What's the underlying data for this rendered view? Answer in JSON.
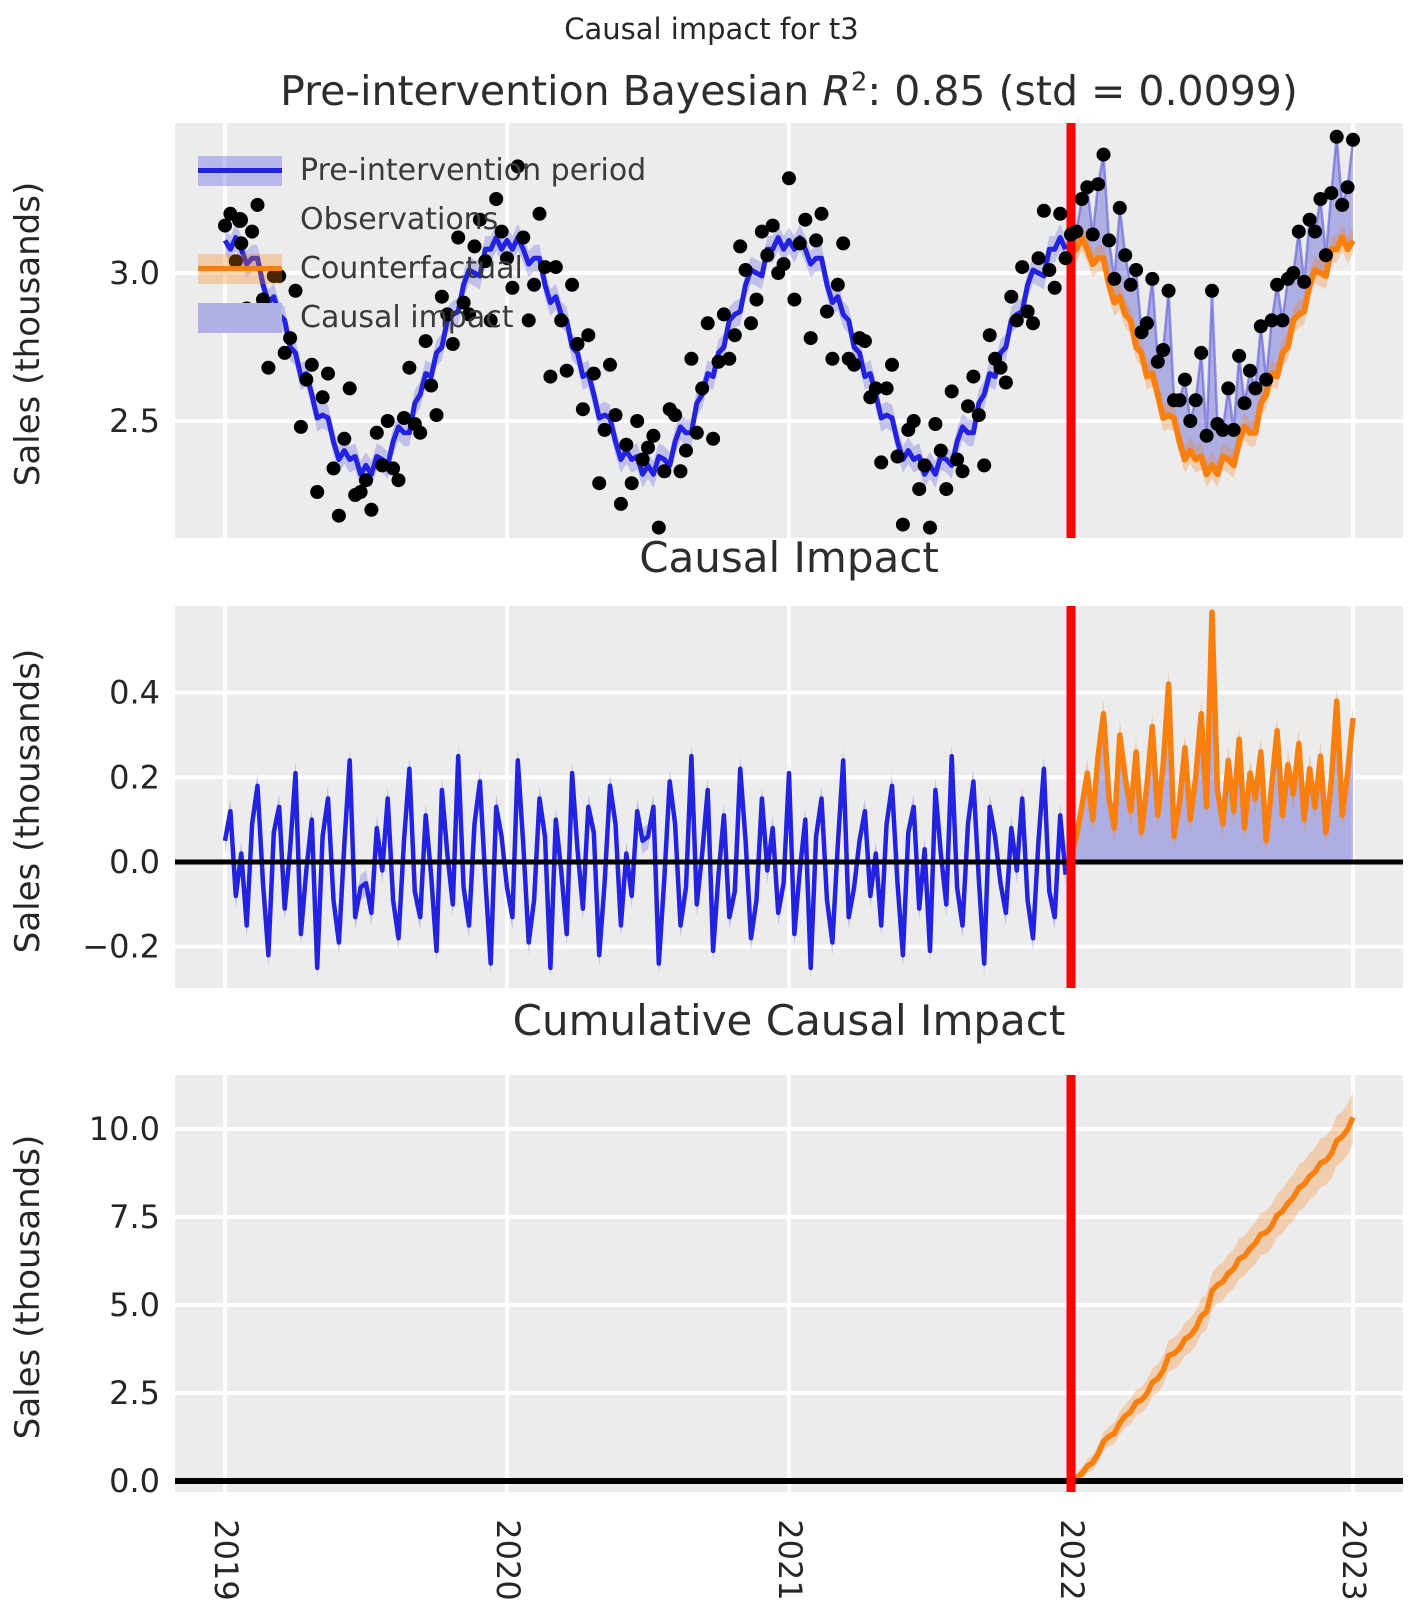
{
  "figure": {
    "suptitle": "Causal impact for t3",
    "colors": {
      "panel_background": "#ececec",
      "grid": "#ffffff",
      "blue_line": "#2222e0",
      "blue_band": "rgba(60,60,225,0.25)",
      "blue_thin": "rgba(90,90,220,0.6)",
      "impact_fill": "rgba(100,100,215,0.45)",
      "orange_line": "#f97f0e",
      "orange_band": "rgba(249,127,14,0.28)",
      "observation_dot": "#000000",
      "intervention_line": "#ff0000",
      "zero_line": "#000000",
      "text": "#262626"
    }
  },
  "panels": [
    {
      "title_prefix": "Pre-intervention Bayesian ",
      "title_r": "R",
      "title_sup": "2",
      "title_suffix": ": 0.85 (std = 0.0099)"
    },
    {
      "title": "Causal Impact"
    },
    {
      "title": "Cumulative Causal Impact"
    }
  ],
  "legend": {
    "items": [
      {
        "label": "Pre-intervention period",
        "swatch": "blue-line-with-band"
      },
      {
        "label": "Observations",
        "swatch": "black-dot"
      },
      {
        "label": "Counterfactual",
        "swatch": "orange-line-with-band"
      },
      {
        "label": "Causal impact",
        "swatch": "light-blue-patch"
      }
    ]
  },
  "axes": {
    "ylabel": "Sales (thousands)",
    "xticks": [
      "2019",
      "2020",
      "2021",
      "2022",
      "2023"
    ]
  },
  "chart_data": [
    {
      "panel": "observed-vs-counterfactual",
      "type": "line",
      "title": "Pre-intervention Bayesian R²: 0.85 (std = 0.0099)",
      "ylabel": "Sales (thousands)",
      "x_start_year": 2019,
      "points_per_year": 52,
      "intervention_week": 156,
      "intervention_x": "2022",
      "band_half_width": 0.045,
      "yticks": [
        {
          "label": "3.0",
          "value": 3.0
        },
        {
          "label": "2.5",
          "value": 2.5
        }
      ],
      "ylim": [
        2.1,
        3.51
      ],
      "series": {
        "observations_pre": [
          3.16,
          3.2,
          3.04,
          3.1,
          2.88,
          3.14,
          3.23,
          2.91,
          2.68,
          2.99,
          2.99,
          2.73,
          2.78,
          2.94,
          2.48,
          2.64,
          2.69,
          2.26,
          2.58,
          2.66,
          2.34,
          2.18,
          2.44,
          2.61,
          2.25,
          2.26,
          2.3,
          2.2,
          2.46,
          2.35,
          2.5,
          2.34,
          2.3,
          2.51,
          2.68,
          2.49,
          2.46,
          2.77,
          2.62,
          2.52,
          2.92,
          2.86,
          2.76,
          3.12,
          2.9,
          2.86,
          3.09,
          3.18,
          3.04,
          2.84,
          3.25,
          3.14,
          3.05,
          2.95,
          3.36,
          3.12,
          2.84,
          2.96,
          3.2,
          3.02,
          2.65,
          3.02,
          2.84,
          2.67,
          2.96,
          2.76,
          2.54,
          2.79,
          2.66,
          2.29,
          2.47,
          2.69,
          2.52,
          2.22,
          2.42,
          2.29,
          2.5,
          2.37,
          2.41,
          2.45,
          2.14,
          2.33,
          2.54,
          2.52,
          2.33,
          2.4,
          2.71,
          2.46,
          2.61,
          2.83,
          2.44,
          2.7,
          2.86,
          2.71,
          2.79,
          3.09,
          3.01,
          2.83,
          2.91,
          3.14,
          3.06,
          3.16,
          3.0,
          3.03,
          3.32,
          2.91,
          3.1,
          3.18,
          2.78,
          3.11,
          3.2,
          2.87,
          2.71,
          2.96,
          3.1,
          2.71,
          2.69,
          2.78,
          2.77,
          2.58,
          2.61,
          2.36,
          2.61,
          2.69,
          2.38,
          2.15,
          2.47,
          2.5,
          2.27,
          2.35,
          2.14,
          2.49,
          2.4,
          2.27,
          2.6,
          2.37,
          2.33,
          2.55,
          2.65,
          2.52,
          2.35,
          2.79,
          2.71,
          2.68,
          2.63,
          2.92,
          2.84,
          3.02,
          2.87,
          2.83,
          3.05,
          3.21,
          3.01,
          2.95,
          3.2,
          3.05
        ],
        "observations_post": [
          3.13,
          3.14,
          3.25,
          3.29,
          3.13,
          3.3,
          3.4,
          3.11,
          2.98,
          3.22,
          3.06,
          2.96,
          3.01,
          2.8,
          2.83,
          2.98,
          2.7,
          2.74,
          2.94,
          2.57,
          2.57,
          2.64,
          2.5,
          2.57,
          2.73,
          2.45,
          2.94,
          2.49,
          2.47,
          2.61,
          2.47,
          2.72,
          2.56,
          2.67,
          2.61,
          2.82,
          2.64,
          2.84,
          2.96,
          2.84,
          2.98,
          3.0,
          3.14,
          2.97,
          3.18,
          3.14,
          3.25,
          3.06,
          3.27,
          3.46,
          3.23,
          3.29,
          3.45
        ],
        "model_fit_pre": [
          3.11,
          3.08,
          3.12,
          3.08,
          3.03,
          3.05,
          3.05,
          2.96,
          2.9,
          2.92,
          2.86,
          2.84,
          2.75,
          2.73,
          2.65,
          2.66,
          2.59,
          2.51,
          2.52,
          2.51,
          2.43,
          2.37,
          2.4,
          2.37,
          2.38,
          2.32,
          2.35,
          2.32,
          2.38,
          2.37,
          2.35,
          2.43,
          2.48,
          2.46,
          2.46,
          2.56,
          2.59,
          2.66,
          2.65,
          2.73,
          2.75,
          2.84,
          2.86,
          2.87,
          2.96,
          3.01,
          3.0,
          2.99,
          3.08,
          3.08,
          3.12,
          3.08,
          3.11,
          3.08,
          3.12,
          3.08,
          3.03,
          3.05,
          3.05,
          2.96,
          2.9,
          2.92,
          2.86,
          2.84,
          2.75,
          2.73,
          2.65,
          2.66,
          2.59,
          2.51,
          2.52,
          2.51,
          2.43,
          2.37,
          2.4,
          2.37,
          2.38,
          2.32,
          2.35,
          2.32,
          2.38,
          2.37,
          2.35,
          2.43,
          2.48,
          2.46,
          2.46,
          2.56,
          2.59,
          2.66,
          2.65,
          2.73,
          2.75,
          2.84,
          2.86,
          2.87,
          2.96,
          3.01,
          3.0,
          2.99,
          3.08,
          3.08,
          3.12,
          3.08,
          3.11,
          3.08,
          3.12,
          3.08,
          3.03,
          3.05,
          3.05,
          2.96,
          2.9,
          2.92,
          2.86,
          2.84,
          2.75,
          2.73,
          2.65,
          2.66,
          2.59,
          2.51,
          2.52,
          2.51,
          2.43,
          2.37,
          2.4,
          2.37,
          2.38,
          2.32,
          2.35,
          2.32,
          2.38,
          2.37,
          2.35,
          2.43,
          2.48,
          2.46,
          2.46,
          2.56,
          2.59,
          2.66,
          2.65,
          2.73,
          2.75,
          2.84,
          2.86,
          2.87,
          2.96,
          3.01,
          3.0,
          2.99,
          3.08,
          3.08,
          3.12,
          3.08
        ],
        "counterfactual_post": [
          3.11,
          3.08,
          3.12,
          3.08,
          3.03,
          3.05,
          3.05,
          2.96,
          2.9,
          2.92,
          2.86,
          2.84,
          2.75,
          2.73,
          2.65,
          2.66,
          2.59,
          2.51,
          2.52,
          2.51,
          2.43,
          2.37,
          2.4,
          2.37,
          2.38,
          2.32,
          2.35,
          2.32,
          2.38,
          2.37,
          2.35,
          2.43,
          2.48,
          2.46,
          2.46,
          2.56,
          2.59,
          2.66,
          2.65,
          2.73,
          2.75,
          2.84,
          2.86,
          2.87,
          2.96,
          3.01,
          3.0,
          2.99,
          3.08,
          3.08,
          3.12,
          3.08,
          3.11
        ]
      }
    },
    {
      "panel": "pointwise-causal-impact",
      "type": "line",
      "title": "Causal Impact",
      "ylabel": "Sales (thousands)",
      "x_start_year": 2019,
      "points_per_year": 52,
      "intervention_week": 156,
      "intervention_x": "2022",
      "band_half_width_pre": 0.03,
      "band_half_width_post": 0.035,
      "yticks": [
        {
          "label": "0.4",
          "value": 0.4
        },
        {
          "label": "0.2",
          "value": 0.2
        },
        {
          "label": "0.0",
          "value": 0.0
        },
        {
          "label": "−0.2",
          "value": -0.2
        }
      ],
      "ylim": [
        -0.3,
        0.6
      ],
      "zero_line": 0.0,
      "series": {
        "impact_pre": [
          0.05,
          0.12,
          -0.08,
          0.02,
          -0.15,
          0.09,
          0.18,
          -0.05,
          -0.22,
          0.07,
          0.13,
          -0.11,
          0.03,
          0.21,
          -0.17,
          -0.02,
          0.1,
          -0.25,
          0.06,
          0.15,
          -0.09,
          -0.19,
          0.04,
          0.24,
          -0.13,
          -0.06,
          -0.05,
          -0.12,
          0.08,
          -0.02,
          0.15,
          -0.09,
          -0.18,
          0.05,
          0.22,
          -0.07,
          -0.13,
          0.11,
          -0.03,
          -0.21,
          0.17,
          0.02,
          -0.1,
          0.25,
          -0.06,
          -0.15,
          0.09,
          0.19,
          -0.04,
          -0.24,
          0.13,
          0.06,
          -0.06,
          -0.13,
          0.24,
          0.04,
          -0.19,
          -0.09,
          0.15,
          0.06,
          -0.25,
          0.1,
          -0.02,
          -0.17,
          0.21,
          0.03,
          -0.11,
          0.13,
          0.07,
          -0.22,
          -0.05,
          0.18,
          0.09,
          -0.15,
          0.02,
          -0.08,
          0.12,
          0.05,
          0.06,
          0.13,
          -0.24,
          -0.04,
          0.19,
          0.09,
          -0.15,
          -0.06,
          0.25,
          -0.1,
          0.02,
          0.17,
          -0.21,
          -0.03,
          0.11,
          -0.13,
          -0.07,
          0.22,
          0.05,
          -0.18,
          -0.09,
          0.15,
          -0.02,
          0.08,
          -0.12,
          -0.05,
          0.21,
          -0.17,
          -0.02,
          0.1,
          -0.25,
          0.06,
          0.15,
          -0.09,
          -0.19,
          0.04,
          0.24,
          -0.13,
          -0.06,
          0.05,
          0.12,
          -0.08,
          0.02,
          -0.15,
          0.09,
          0.18,
          -0.05,
          -0.22,
          0.07,
          0.13,
          -0.11,
          0.03,
          -0.21,
          0.17,
          0.02,
          -0.1,
          0.25,
          -0.06,
          -0.15,
          0.09,
          0.19,
          -0.04,
          -0.24,
          0.13,
          0.06,
          -0.05,
          -0.12,
          0.08,
          -0.02,
          0.15,
          -0.09,
          -0.18,
          0.05,
          0.22,
          -0.07,
          -0.13,
          0.11,
          -0.03
        ],
        "impact_post": [
          0.02,
          0.06,
          0.13,
          0.21,
          0.1,
          0.25,
          0.35,
          0.15,
          0.08,
          0.3,
          0.2,
          0.12,
          0.26,
          0.07,
          0.18,
          0.32,
          0.11,
          0.23,
          0.42,
          0.06,
          0.14,
          0.27,
          0.1,
          0.2,
          0.35,
          0.13,
          0.59,
          0.17,
          0.09,
          0.24,
          0.12,
          0.29,
          0.08,
          0.21,
          0.15,
          0.26,
          0.05,
          0.18,
          0.31,
          0.11,
          0.23,
          0.16,
          0.28,
          0.1,
          0.22,
          0.13,
          0.25,
          0.07,
          0.19,
          0.38,
          0.11,
          0.21,
          0.34
        ]
      }
    },
    {
      "panel": "cumulative-causal-impact",
      "type": "line",
      "title": "Cumulative Causal Impact",
      "ylabel": "Sales (thousands)",
      "x_start_year": 2019,
      "points_per_year": 52,
      "intervention_week": 156,
      "intervention_x": "2022",
      "yticks": [
        {
          "label": "10.0",
          "value": 10.0
        },
        {
          "label": "7.5",
          "value": 7.5
        },
        {
          "label": "5.0",
          "value": 5.0
        },
        {
          "label": "2.5",
          "value": 2.5
        },
        {
          "label": "0.0",
          "value": 0.0
        }
      ],
      "ylim": [
        -0.15,
        11.5
      ],
      "zero_line": 0.0,
      "series": {
        "cumulative_impact_post": [
          0.02,
          0.08,
          0.21,
          0.42,
          0.52,
          0.77,
          1.12,
          1.27,
          1.35,
          1.65,
          1.85,
          1.97,
          2.23,
          2.3,
          2.48,
          2.8,
          2.91,
          3.14,
          3.56,
          3.62,
          3.76,
          4.03,
          4.13,
          4.33,
          4.68,
          4.81,
          5.4,
          5.57,
          5.66,
          5.9,
          6.02,
          6.31,
          6.39,
          6.6,
          6.75,
          7.01,
          7.06,
          7.24,
          7.55,
          7.66,
          7.89,
          8.05,
          8.33,
          8.43,
          8.65,
          8.78,
          9.03,
          9.1,
          9.29,
          9.67,
          9.78,
          9.99,
          10.33
        ],
        "cumulative_band_half": [
          0.1,
          0.14,
          0.17,
          0.2,
          0.22,
          0.24,
          0.26,
          0.28,
          0.3,
          0.32,
          0.33,
          0.35,
          0.36,
          0.37,
          0.39,
          0.4,
          0.41,
          0.42,
          0.44,
          0.45,
          0.46,
          0.47,
          0.48,
          0.49,
          0.5,
          0.51,
          0.52,
          0.53,
          0.54,
          0.55,
          0.56,
          0.57,
          0.57,
          0.58,
          0.59,
          0.6,
          0.61,
          0.62,
          0.62,
          0.63,
          0.64,
          0.65,
          0.66,
          0.66,
          0.67,
          0.68,
          0.69,
          0.69,
          0.7,
          0.71,
          0.71,
          0.72,
          0.73
        ]
      }
    }
  ]
}
